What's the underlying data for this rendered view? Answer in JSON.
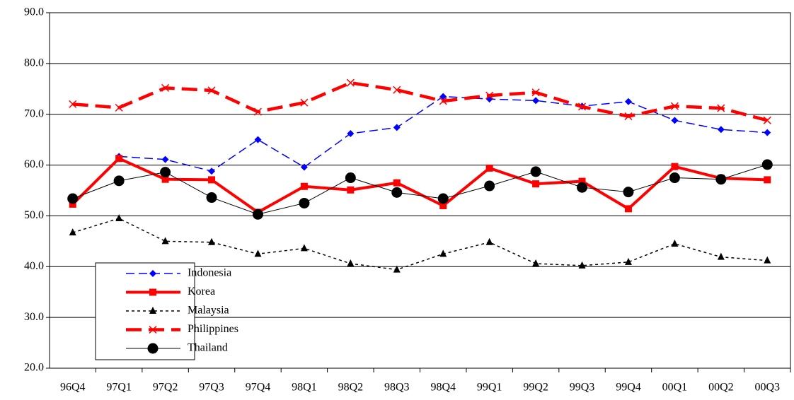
{
  "chart_data": {
    "type": "line",
    "categories": [
      "96Q4",
      "97Q1",
      "97Q2",
      "97Q3",
      "97Q4",
      "98Q1",
      "98Q2",
      "98Q3",
      "98Q4",
      "99Q1",
      "99Q2",
      "99Q3",
      "99Q4",
      "00Q1",
      "00Q2",
      "00Q3"
    ],
    "series": [
      {
        "name": "Indonesia",
        "color": "#0000ff",
        "marker": "diamond",
        "line_style": "dashed",
        "line_width": 1.5,
        "values": [
          null,
          61.7,
          61.1,
          58.8,
          65.0,
          59.6,
          66.2,
          67.4,
          73.5,
          73.0,
          72.7,
          71.6,
          72.5,
          68.8,
          67.0,
          66.4
        ]
      },
      {
        "name": "Korea",
        "color": "#ff0000",
        "marker": "square",
        "line_style": "solid",
        "line_width": 4,
        "values": [
          52.3,
          61.3,
          57.2,
          57.1,
          50.7,
          55.8,
          55.1,
          56.5,
          52.0,
          59.4,
          56.3,
          56.8,
          51.4,
          59.7,
          57.4,
          57.1
        ]
      },
      {
        "name": "Malaysia",
        "color": "#000000",
        "marker": "triangle",
        "line_style": "dotted",
        "line_width": 1.5,
        "values": [
          46.7,
          49.5,
          45.0,
          44.8,
          42.5,
          43.6,
          40.6,
          39.4,
          42.5,
          44.8,
          40.6,
          40.2,
          40.9,
          44.5,
          41.9,
          41.2
        ]
      },
      {
        "name": "Philippines",
        "color": "#ff0000",
        "marker": "x",
        "line_style": "dashed",
        "line_width": 4.5,
        "values": [
          72.0,
          71.3,
          75.2,
          74.7,
          70.5,
          72.3,
          76.2,
          74.8,
          72.6,
          73.7,
          74.3,
          71.5,
          69.6,
          71.6,
          71.2,
          68.8
        ]
      },
      {
        "name": "Thailand",
        "color": "#000000",
        "marker": "circle",
        "line_style": "solid",
        "line_width": 1,
        "values": [
          53.4,
          56.9,
          58.6,
          53.6,
          50.3,
          52.5,
          57.5,
          54.6,
          53.4,
          55.9,
          58.7,
          55.6,
          54.7,
          57.5,
          57.2,
          60.1
        ]
      }
    ],
    "ylim": [
      20,
      90
    ],
    "yticks": [
      {
        "value": 20,
        "label": "20.0"
      },
      {
        "value": 30,
        "label": "30.0"
      },
      {
        "value": 40,
        "label": "40.0"
      },
      {
        "value": 50,
        "label": "50.0"
      },
      {
        "value": 60,
        "label": "60.0"
      },
      {
        "value": 70,
        "label": "70.0"
      },
      {
        "value": 80,
        "label": "80.0"
      },
      {
        "value": 90,
        "label": "90.0"
      }
    ],
    "grid": true,
    "legend": "lower-left"
  }
}
